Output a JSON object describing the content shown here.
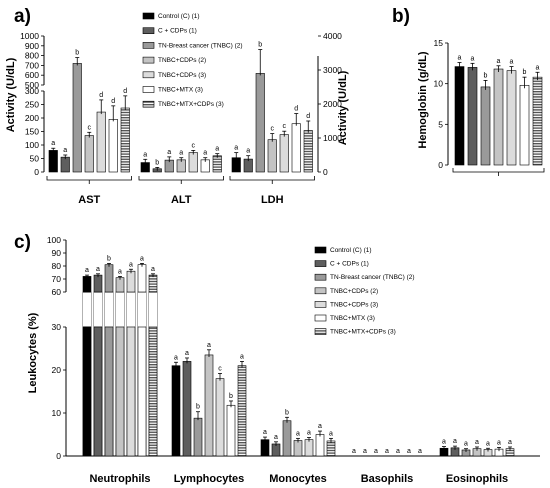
{
  "colors": [
    "#000000",
    "#5e5e5e",
    "#9a9a9a",
    "#c4c4c4",
    "#dcdcdc",
    "#ffffff",
    "#555555"
  ],
  "legend_a": [
    "Control (C) (1)",
    "C + CDPs (1)",
    "TN-Breast cancer (TNBC) (2)",
    "TNBC+CDPs (2)",
    "TNBC+CDPs (3)",
    "TNBC+MTX (3)",
    "TNBC+MTX+CDPs (3)"
  ],
  "legend_c": [
    "Control (C) (1)",
    "C + CDPs (1)",
    "TN-Breast cancer (TNBC) (2)",
    "TNBC+CDPs (2)",
    "TNBC+CDPs (3)",
    "TNBC+MTX (3)",
    "TNBC+MTX+CDPs (3)"
  ],
  "chart_data": [
    {
      "panel": "a)",
      "type": "bar",
      "ylabel": "Activity (U/dL)",
      "ylabel_right": "Activity (U/dL)",
      "left_axis_upper": {
        "ticks": [
          500,
          600,
          700,
          800,
          900,
          1000
        ],
        "ylim": [
          500,
          1000
        ]
      },
      "left_axis_lower": {
        "ticks": [
          0,
          50,
          100,
          150,
          200,
          250,
          300
        ],
        "ylim": [
          0,
          300
        ]
      },
      "right_axis": {
        "ticks": [
          0,
          1000,
          2000,
          3000,
          4000
        ],
        "ylim": [
          0,
          4000
        ]
      },
      "groups": [
        {
          "name": "AST",
          "axis": "left",
          "values": [
            80,
            55,
            720,
            135,
            222,
            195,
            237
          ],
          "errors": [
            8,
            8,
            60,
            12,
            45,
            50,
            45
          ],
          "letters": [
            "a",
            "a",
            "b",
            "c",
            "d",
            "d",
            "d"
          ]
        },
        {
          "name": "ALT",
          "axis": "left",
          "values": [
            35,
            12,
            44,
            45,
            72,
            45,
            60
          ],
          "errors": [
            12,
            5,
            12,
            8,
            8,
            8,
            8
          ],
          "letters": [
            "a",
            "b",
            "a",
            "a",
            "c",
            "a",
            "a"
          ]
        },
        {
          "name": "LDH",
          "axis": "right",
          "values": [
            420,
            380,
            2900,
            950,
            1100,
            1420,
            1220
          ],
          "errors": [
            150,
            100,
            700,
            180,
            100,
            300,
            280
          ],
          "letters": [
            "a",
            "a",
            "b",
            "c",
            "c",
            "d",
            "d"
          ]
        }
      ]
    },
    {
      "panel": "b)",
      "type": "bar",
      "ylabel": "Hemoglobin (g/dL)",
      "ylim": [
        0,
        15
      ],
      "yticks": [
        0,
        5,
        10,
        15
      ],
      "values": [
        12.1,
        12.0,
        9.6,
        11.8,
        11.6,
        9.8,
        10.8
      ],
      "errors": [
        0.5,
        0.5,
        0.8,
        0.4,
        0.5,
        1.0,
        0.6
      ],
      "letters": [
        "a",
        "a",
        "b",
        "a",
        "a",
        "b",
        "a"
      ]
    },
    {
      "panel": "c)",
      "type": "bar",
      "ylabel": "Leukocytes (%)",
      "upper_axis": {
        "ticks": [
          60,
          70,
          80,
          90,
          100
        ],
        "ylim": [
          60,
          100
        ]
      },
      "lower_axis": {
        "ticks": [
          0,
          10,
          20,
          30
        ],
        "ylim": [
          0,
          30
        ]
      },
      "groups": [
        {
          "name": "Neutrophils",
          "values": [
            72,
            73,
            81,
            71,
            76,
            81,
            73
          ],
          "errors": [
            1,
            1,
            1,
            1,
            1.5,
            1,
            1
          ],
          "letters": [
            "a",
            "a",
            "b",
            "a",
            "a",
            "a",
            "a"
          ]
        },
        {
          "name": "Lymphocytes",
          "values": [
            21,
            22,
            8.8,
            23.5,
            18,
            11.8,
            21
          ],
          "errors": [
            0.8,
            0.8,
            1.5,
            1.2,
            1.2,
            1.0,
            1.0
          ],
          "letters": [
            "a",
            "a",
            "b",
            "a",
            "c",
            "b",
            "a"
          ]
        },
        {
          "name": "Monocytes",
          "values": [
            3.8,
            2.8,
            8.2,
            3.6,
            3.8,
            5.0,
            3.5
          ],
          "errors": [
            0.6,
            0.5,
            0.8,
            0.5,
            0.5,
            0.8,
            0.6
          ],
          "letters": [
            "a",
            "a",
            "b",
            "a",
            "a",
            "a",
            "a"
          ]
        },
        {
          "name": "Basophils",
          "values": [
            0.05,
            0.05,
            0.05,
            0.05,
            0.05,
            0.05,
            0.05
          ],
          "errors": [
            0,
            0,
            0,
            0,
            0,
            0,
            0
          ],
          "letters": [
            "a",
            "a",
            "a",
            "a",
            "a",
            "a",
            "a"
          ]
        },
        {
          "name": "Eosinophils",
          "values": [
            1.8,
            1.9,
            1.4,
            1.7,
            1.5,
            1.6,
            1.7
          ],
          "errors": [
            0.4,
            0.4,
            0.3,
            0.4,
            0.3,
            0.4,
            0.4
          ],
          "letters": [
            "a",
            "a",
            "a",
            "a",
            "a",
            "a",
            "a"
          ]
        }
      ]
    }
  ]
}
